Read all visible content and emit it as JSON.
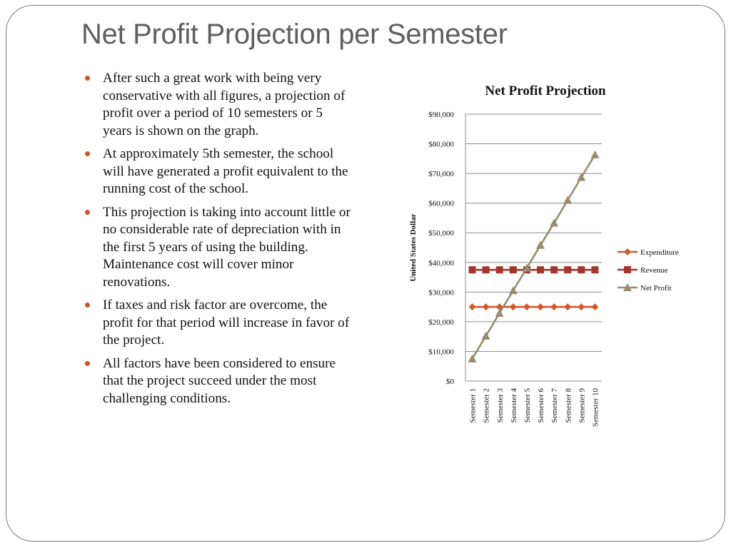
{
  "slide": {
    "title": "Net Profit Projection per Semester",
    "bullets": [
      "After such a great work with being very conservative with all figures, a projection of profit over a period of 10 semesters or 5 years is shown on the graph.",
      "At approximately 5th semester, the school will have generated a profit equivalent to the running  cost of the school.",
      "This projection is taking into account little or no considerable rate of depreciation with in the first 5 years of using the building. Maintenance cost will cover minor renovations.",
      "If taxes and risk factor are overcome, the profit for that period will increase in favor of the project.",
      "All factors have been considered to ensure that the project succeed under the most challenging conditions."
    ],
    "bullet_color": "#c8552c"
  },
  "chart_data": {
    "type": "line",
    "title": "Net Profit Projection",
    "xlabel": "",
    "ylabel": "United States Dollar",
    "categories": [
      "Semester 1",
      "Semester 2",
      "Semester 3",
      "Semester 4",
      "Semester 5",
      "Semester 6",
      "Semester 7",
      "Semester 8",
      "Semester 9",
      "Semester 10"
    ],
    "ylim": [
      0,
      90000
    ],
    "yticks": [
      0,
      10000,
      20000,
      30000,
      40000,
      50000,
      60000,
      70000,
      80000,
      90000
    ],
    "ytick_labels": [
      "$0",
      "$10,000",
      "$20,000",
      "$30,000",
      "$40,000",
      "$50,000",
      "$60,000",
      "$70,000",
      "$80,000",
      "$90,000"
    ],
    "grid": true,
    "legend_position": "right",
    "series": [
      {
        "name": "Expenditure",
        "marker": "diamond",
        "color": "#d05a2a",
        "values": [
          25000,
          25000,
          25000,
          25000,
          25000,
          25000,
          25000,
          25000,
          25000,
          25000
        ]
      },
      {
        "name": "Revenue",
        "marker": "square",
        "color": "#a3362c",
        "values": [
          37500,
          37500,
          37500,
          37500,
          37500,
          37500,
          37500,
          37500,
          37500,
          37500
        ]
      },
      {
        "name": "Net Profit",
        "marker": "triangle",
        "color": "#9a8a6e",
        "values": [
          7500,
          15200,
          22900,
          30500,
          38100,
          45800,
          53300,
          61000,
          68700,
          76300
        ]
      }
    ]
  }
}
